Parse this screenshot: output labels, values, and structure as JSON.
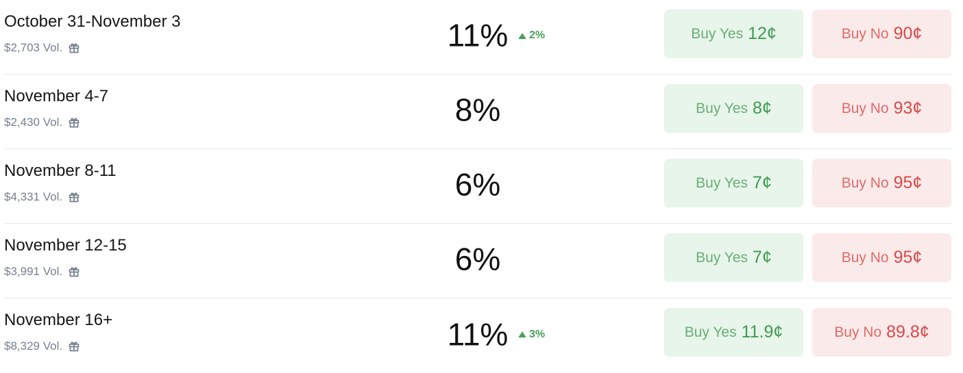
{
  "rows": [
    {
      "title": "October 31-November 3",
      "volume": "$2,703 Vol.",
      "percent": "11%",
      "change": "2%",
      "yes_label": "Buy Yes",
      "yes_price": "12¢",
      "no_label": "Buy No",
      "no_price": "90¢"
    },
    {
      "title": "November 4-7",
      "volume": "$2,430 Vol.",
      "percent": "8%",
      "change": null,
      "yes_label": "Buy Yes",
      "yes_price": "8¢",
      "no_label": "Buy No",
      "no_price": "93¢"
    },
    {
      "title": "November 8-11",
      "volume": "$4,331 Vol.",
      "percent": "6%",
      "change": null,
      "yes_label": "Buy Yes",
      "yes_price": "7¢",
      "no_label": "Buy No",
      "no_price": "95¢"
    },
    {
      "title": "November 12-15",
      "volume": "$3,991 Vol.",
      "percent": "6%",
      "change": null,
      "yes_label": "Buy Yes",
      "yes_price": "7¢",
      "no_label": "Buy No",
      "no_price": "95¢"
    },
    {
      "title": "November 16+",
      "volume": "$8,329 Vol.",
      "percent": "11%",
      "change": "3%",
      "yes_label": "Buy Yes",
      "yes_price": "11.9¢",
      "no_label": "Buy No",
      "no_price": "89.8¢"
    }
  ],
  "colors": {
    "yes": "#3f9a52",
    "no": "#d94848",
    "up": "#4aa05a"
  },
  "icons": {
    "volume": "gift-icon",
    "change": "triangle-up-icon"
  }
}
